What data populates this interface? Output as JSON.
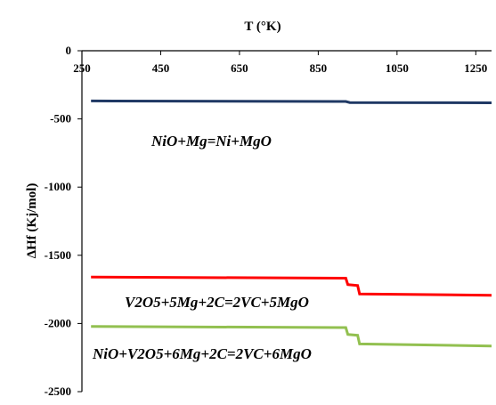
{
  "chart_data": {
    "type": "line",
    "title": "",
    "xlabel": "T (°K)",
    "ylabel": "ΔHf (Kj/mol)",
    "xlim": [
      250,
      1290
    ],
    "ylim": [
      -2500,
      0
    ],
    "x_ticks": [
      250,
      450,
      650,
      850,
      1050,
      1250
    ],
    "y_ticks": [
      0,
      -500,
      -1000,
      -1500,
      -2000,
      -2500
    ],
    "x_axis_position": "top",
    "grid": false,
    "legend": "none",
    "series": [
      {
        "name": "NiO+Mg=Ni+MgO",
        "color": "#1f3864",
        "x": [
          273,
          920,
          930,
          1290
        ],
        "y": [
          -368,
          -372,
          -380,
          -382
        ]
      },
      {
        "name": "V2O5+5Mg+2C=2VC+5MgO",
        "color": "#ff0000",
        "x": [
          273,
          920,
          925,
          950,
          955,
          1290
        ],
        "y": [
          -1660,
          -1668,
          -1715,
          -1722,
          -1783,
          -1793
        ]
      },
      {
        "name": "NiO+V2O5+6Mg+2C=2VC+6MgO",
        "color": "#92c050",
        "x": [
          273,
          920,
          925,
          950,
          955,
          1290
        ],
        "y": [
          -2022,
          -2030,
          -2080,
          -2087,
          -2150,
          -2165
        ]
      }
    ]
  }
}
